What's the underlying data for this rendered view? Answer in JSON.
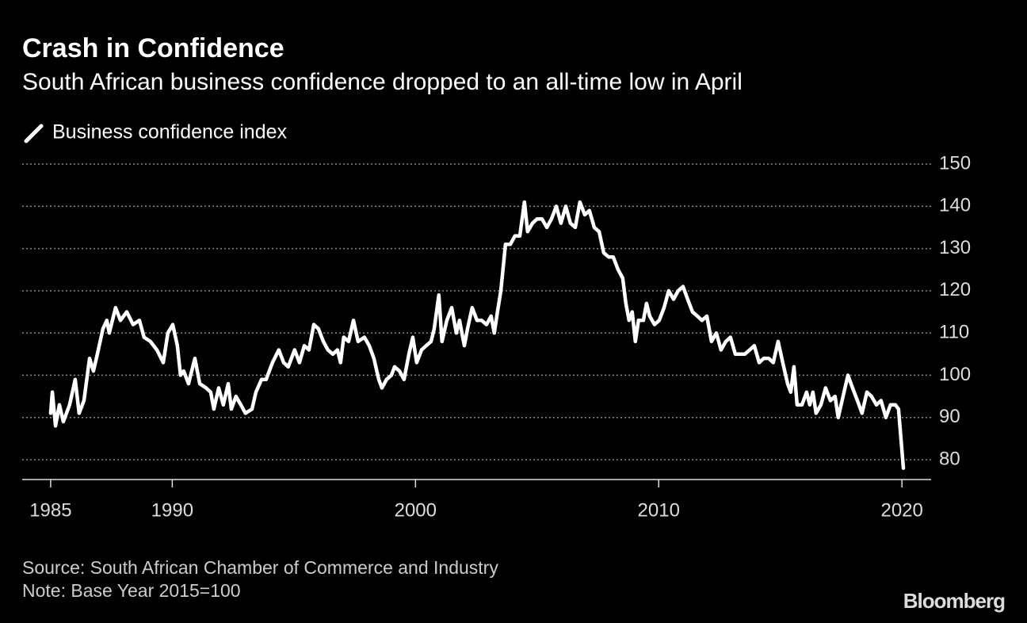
{
  "chart_data": {
    "type": "line",
    "title": "Crash in Confidence",
    "subtitle": "South African business confidence dropped to an all-time low in April",
    "source": "Source: South African Chamber of Commerce and Industry",
    "note": "Note: Base Year 2015=100",
    "brand": "Bloomberg",
    "xlim": [
      1983.83,
      2021.2
    ],
    "xticks": [
      1985,
      1990,
      2000,
      2010,
      2020
    ],
    "ylim": [
      75.31,
      150
    ],
    "yticks": [
      80,
      90,
      100,
      110,
      120,
      130,
      140,
      150
    ],
    "grid": true,
    "x": [
      1985.0,
      1985.07,
      1985.2,
      1985.36,
      1985.52,
      1985.78,
      1986.01,
      1986.17,
      1986.37,
      1986.6,
      1986.76,
      1986.92,
      1987.15,
      1987.31,
      1987.41,
      1987.67,
      1987.87,
      1988.13,
      1988.39,
      1988.65,
      1988.84,
      1989.1,
      1989.37,
      1989.63,
      1989.82,
      1990.02,
      1990.21,
      1990.34,
      1990.47,
      1990.67,
      1990.93,
      1991.13,
      1991.39,
      1991.58,
      1991.71,
      1991.91,
      1992.1,
      1992.3,
      1992.43,
      1992.62,
      1992.82,
      1993.01,
      1993.28,
      1993.44,
      1993.67,
      1993.86,
      1994.12,
      1994.38,
      1994.58,
      1994.77,
      1995.03,
      1995.23,
      1995.43,
      1995.62,
      1995.82,
      1996.01,
      1996.21,
      1996.4,
      1996.6,
      1996.79,
      1996.92,
      1997.05,
      1997.25,
      1997.45,
      1997.64,
      1997.9,
      1998.1,
      1998.29,
      1998.49,
      1998.62,
      1998.81,
      1999.01,
      1999.14,
      1999.34,
      1999.53,
      1999.73,
      1999.89,
      2000.05,
      2000.25,
      2000.44,
      2000.64,
      2000.77,
      2000.96,
      2001.09,
      2001.29,
      2001.49,
      2001.68,
      2001.81,
      2002.01,
      2002.14,
      2002.33,
      2002.53,
      2002.72,
      2002.92,
      2003.11,
      2003.24,
      2003.37,
      2003.51,
      2003.7,
      2003.9,
      2004.09,
      2004.29,
      2004.48,
      2004.61,
      2004.81,
      2005.0,
      2005.2,
      2005.4,
      2005.59,
      2005.79,
      2005.98,
      2006.18,
      2006.37,
      2006.57,
      2006.76,
      2006.96,
      2007.15,
      2007.35,
      2007.55,
      2007.74,
      2007.94,
      2008.13,
      2008.33,
      2008.52,
      2008.65,
      2008.78,
      2008.91,
      2009.04,
      2009.17,
      2009.37,
      2009.5,
      2009.63,
      2009.83,
      2010.02,
      2010.22,
      2010.41,
      2010.61,
      2010.8,
      2011.0,
      2011.19,
      2011.39,
      2011.59,
      2011.78,
      2011.98,
      2012.17,
      2012.37,
      2012.56,
      2012.76,
      2012.95,
      2013.15,
      2013.34,
      2013.54,
      2013.74,
      2013.93,
      2014.13,
      2014.32,
      2014.52,
      2014.71,
      2014.91,
      2015.1,
      2015.3,
      2015.43,
      2015.56,
      2015.69,
      2015.89,
      2016.08,
      2016.21,
      2016.34,
      2016.47,
      2016.67,
      2016.86,
      2017.06,
      2017.25,
      2017.38,
      2017.58,
      2017.78,
      2017.97,
      2018.17,
      2018.36,
      2018.56,
      2018.75,
      2018.95,
      2019.14,
      2019.34,
      2019.53,
      2019.73,
      2019.86,
      2019.96,
      2020.06
    ],
    "series": [
      {
        "name": "Business confidence index",
        "color": "#ffffff",
        "values": [
          91,
          96,
          88,
          93,
          89,
          93,
          99,
          91,
          94,
          104,
          101,
          105,
          111,
          113,
          110,
          116,
          113,
          115,
          112,
          113,
          109,
          108,
          106,
          103,
          110,
          112,
          107,
          100,
          101,
          98,
          104,
          98,
          97,
          96,
          92,
          97,
          93,
          98,
          92,
          95,
          93,
          91,
          92,
          96,
          99,
          99,
          103,
          106,
          103,
          102,
          106,
          103,
          107,
          106,
          112,
          111,
          108,
          106,
          105,
          106,
          103,
          109,
          108,
          113,
          108,
          109,
          107,
          104,
          99,
          97,
          99,
          100,
          102,
          101,
          99,
          105,
          109,
          103,
          106,
          107,
          108,
          111,
          119,
          108,
          113,
          116,
          110,
          113,
          107,
          111,
          116,
          113,
          113,
          112,
          114,
          110,
          115,
          120,
          131,
          131,
          133,
          133,
          141,
          134,
          136,
          137,
          137,
          135,
          137,
          140,
          136,
          140,
          136,
          135,
          141,
          138,
          139,
          135,
          134,
          129,
          128,
          128,
          125,
          123,
          117,
          113,
          115,
          108,
          113,
          113,
          117,
          114,
          112,
          113,
          116,
          120,
          118,
          120,
          121,
          118,
          115,
          114,
          113,
          114,
          108,
          110,
          106,
          108,
          109,
          105,
          105,
          105,
          106,
          107,
          103,
          104,
          104,
          103,
          108,
          103,
          98,
          96,
          102,
          93,
          93,
          96,
          93,
          96,
          91,
          93,
          97,
          94,
          95,
          90,
          95,
          100,
          97,
          94,
          91,
          96,
          95,
          93,
          94,
          90,
          93,
          93,
          92,
          85,
          78
        ]
      }
    ]
  }
}
